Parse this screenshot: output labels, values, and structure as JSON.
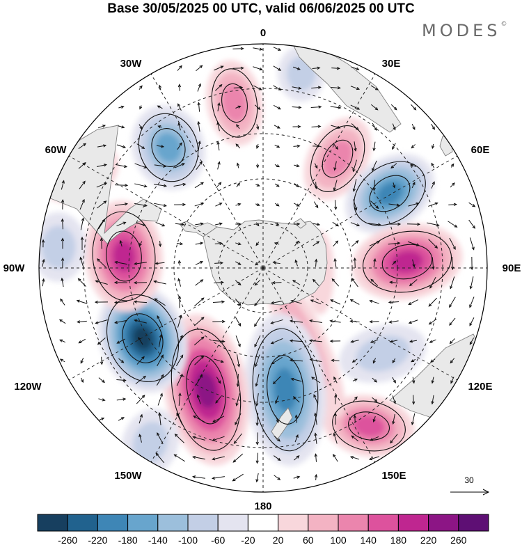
{
  "header": {
    "title": "Base 30/05/2025 00 UTC, valid 06/06/2025 00 UTC",
    "logo": "MODES"
  },
  "map": {
    "projection": "south polar stereographic",
    "longitude_labels": {
      "lon_0": "0",
      "lon_30e": "30E",
      "lon_60e": "60E",
      "lon_90e": "90E",
      "lon_120e": "120E",
      "lon_150e": "150E",
      "lon_180": "180",
      "lon_150w": "150W",
      "lon_120w": "120W",
      "lon_90w": "90W",
      "lon_60w": "60W",
      "lon_30w": "30W"
    },
    "reference_vector": {
      "label": "30"
    },
    "colors": {
      "land": "#e9e9e9",
      "coast": "#888888",
      "grid": "#222222"
    }
  },
  "colorbar": {
    "labels": [
      "-260",
      "-220",
      "-180",
      "-140",
      "-100",
      "-60",
      "-20",
      "20",
      "60",
      "100",
      "140",
      "180",
      "220",
      "260"
    ],
    "colors": [
      "#173f5f",
      "#21628e",
      "#3e86b6",
      "#68a5cd",
      "#9cbfdc",
      "#c3cfe6",
      "#e4e4f0",
      "#ffffff",
      "#f8d7dc",
      "#f3b3c3",
      "#eb85ad",
      "#dd529d",
      "#bf2690",
      "#8c1585",
      "#5e0f74"
    ]
  }
}
